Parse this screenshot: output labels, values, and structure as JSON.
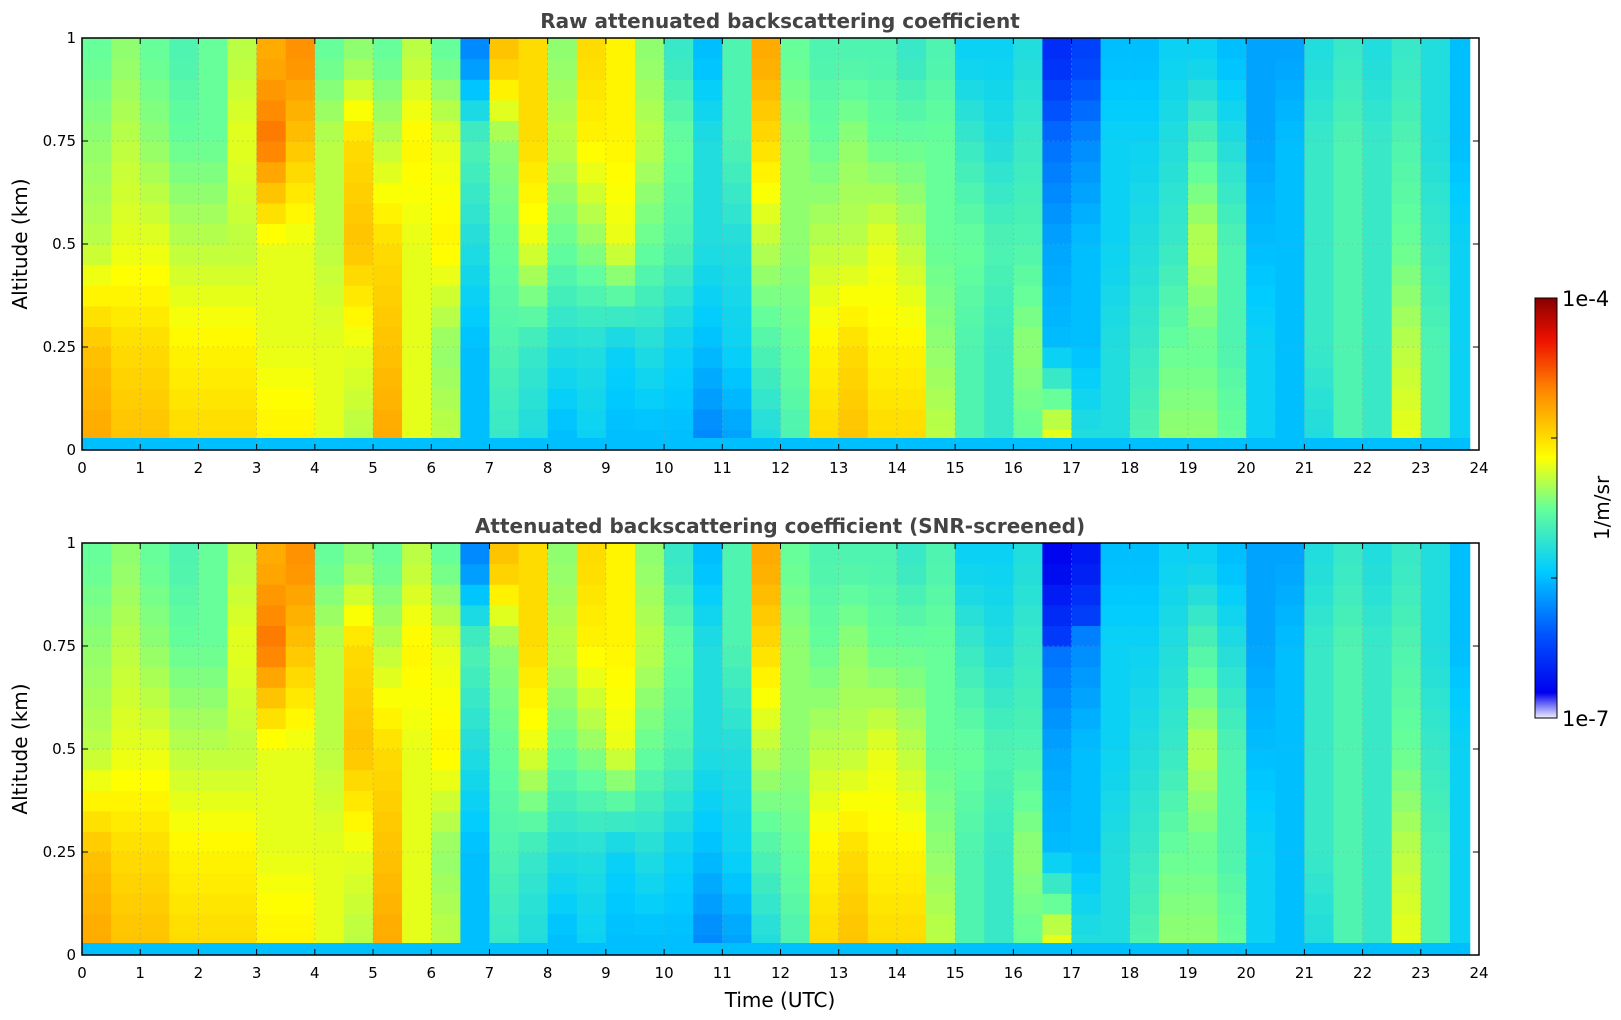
{
  "figure": {
    "xlabel": "Time (UTC)",
    "colorbar_label": "1/m/sr",
    "colorbar_ticks": [
      "1e-4",
      "1e-7"
    ],
    "colormap": "jet"
  },
  "chart_data": [
    {
      "type": "heatmap",
      "title": "Raw attenuated backscattering coefficient",
      "xlabel": "",
      "ylabel": "Altitude (km)",
      "xlim": [
        0,
        24
      ],
      "ylim": [
        0,
        1
      ],
      "x_ticks": [
        "0",
        "1",
        "2",
        "3",
        "4",
        "5",
        "6",
        "7",
        "8",
        "9",
        "10",
        "11",
        "12",
        "13",
        "14",
        "15",
        "16",
        "17",
        "18",
        "19",
        "20",
        "21",
        "22",
        "23",
        "24"
      ],
      "y_ticks": [
        "0",
        "0.25",
        "0.5",
        "0.75",
        "1"
      ],
      "grid": true,
      "colorbar": {
        "range": [
          "1e-7",
          "1e-4"
        ],
        "label": "1/m/sr",
        "scale": "log"
      },
      "time_profiles": {
        "time": [
          0,
          0.5,
          1,
          1.5,
          2,
          2.5,
          3,
          3.5,
          4,
          4.5,
          5,
          5.5,
          6,
          6.5,
          7,
          7.5,
          8,
          8.5,
          9,
          9.5,
          10,
          10.5,
          11,
          11.5,
          12,
          12.5,
          13,
          13.5,
          14,
          14.5,
          15,
          15.5,
          16,
          16.5,
          17,
          17.5,
          18,
          18.5,
          19,
          19.5,
          20,
          20.5,
          21,
          21.5,
          22,
          22.5,
          23,
          23.5
        ],
        "altitude": [
          0.05,
          0.25,
          0.5,
          0.75,
          0.95
        ],
        "log10_beta": [
          [
            -4.8,
            -4.9,
            -5.3,
            -5.4,
            -5.5
          ],
          [
            -4.9,
            -5.0,
            -5.2,
            -5.3,
            -5.4
          ],
          [
            -4.9,
            -5.0,
            -5.2,
            -5.4,
            -5.5
          ],
          [
            -5.0,
            -5.1,
            -5.3,
            -5.5,
            -5.6
          ],
          [
            -5.0,
            -5.1,
            -5.3,
            -5.5,
            -5.5
          ],
          [
            -5.0,
            -5.1,
            -5.3,
            -5.2,
            -5.3
          ],
          [
            -5.1,
            -5.2,
            -5.2,
            -4.6,
            -4.8
          ],
          [
            -5.1,
            -5.2,
            -5.2,
            -4.9,
            -4.7
          ],
          [
            -5.2,
            -5.2,
            -5.3,
            -5.3,
            -5.5
          ],
          [
            -5.3,
            -5.2,
            -4.9,
            -5.0,
            -5.4
          ],
          [
            -4.8,
            -4.9,
            -5.0,
            -5.3,
            -5.5
          ],
          [
            -5.2,
            -5.2,
            -5.2,
            -5.1,
            -5.3
          ],
          [
            -5.3,
            -5.4,
            -5.1,
            -5.2,
            -5.5
          ],
          [
            -6.0,
            -6.0,
            -5.8,
            -5.6,
            -6.2
          ],
          [
            -5.7,
            -5.6,
            -5.5,
            -5.4,
            -4.9
          ],
          [
            -5.8,
            -5.7,
            -5.2,
            -5.0,
            -5.0
          ],
          [
            -6.0,
            -5.8,
            -5.5,
            -5.3,
            -5.4
          ],
          [
            -5.9,
            -5.8,
            -5.4,
            -5.1,
            -5.0
          ],
          [
            -6.0,
            -5.9,
            -5.2,
            -5.1,
            -5.1
          ],
          [
            -6.0,
            -5.8,
            -5.5,
            -5.3,
            -5.4
          ],
          [
            -6.0,
            -5.9,
            -5.6,
            -5.5,
            -5.7
          ],
          [
            -6.2,
            -6.0,
            -5.8,
            -5.8,
            -6.0
          ],
          [
            -6.1,
            -5.9,
            -5.8,
            -5.6,
            -5.6
          ],
          [
            -5.8,
            -5.6,
            -5.3,
            -5.0,
            -4.8
          ],
          [
            -5.6,
            -5.5,
            -5.4,
            -5.4,
            -5.5
          ],
          [
            -5.0,
            -5.1,
            -5.3,
            -5.5,
            -5.6
          ],
          [
            -4.9,
            -5.0,
            -5.3,
            -5.4,
            -5.6
          ],
          [
            -5.0,
            -5.1,
            -5.2,
            -5.5,
            -5.6
          ],
          [
            -5.0,
            -5.1,
            -5.3,
            -5.5,
            -5.7
          ],
          [
            -5.3,
            -5.4,
            -5.5,
            -5.5,
            -5.6
          ],
          [
            -5.6,
            -5.6,
            -5.5,
            -5.7,
            -5.9
          ],
          [
            -5.7,
            -5.7,
            -5.6,
            -5.8,
            -5.9
          ],
          [
            -5.5,
            -5.4,
            -5.6,
            -5.7,
            -5.8
          ],
          [
            -5.2,
            -6.0,
            -6.1,
            -6.3,
            -6.6
          ],
          [
            -5.8,
            -6.0,
            -6.0,
            -6.2,
            -6.5
          ],
          [
            -5.8,
            -5.8,
            -5.9,
            -5.9,
            -6.0
          ],
          [
            -5.6,
            -5.7,
            -5.8,
            -5.9,
            -6.0
          ],
          [
            -5.4,
            -5.5,
            -5.7,
            -5.8,
            -5.9
          ],
          [
            -5.4,
            -5.5,
            -5.3,
            -5.6,
            -5.9
          ],
          [
            -5.5,
            -5.6,
            -5.6,
            -5.8,
            -6.0
          ],
          [
            -5.9,
            -5.9,
            -6.0,
            -6.1,
            -6.1
          ],
          [
            -6.0,
            -6.0,
            -6.0,
            -6.0,
            -6.1
          ],
          [
            -5.8,
            -5.7,
            -5.7,
            -5.7,
            -5.8
          ],
          [
            -5.6,
            -5.6,
            -5.6,
            -5.6,
            -5.7
          ],
          [
            -5.7,
            -5.7,
            -5.7,
            -5.7,
            -5.8
          ],
          [
            -5.2,
            -5.3,
            -5.5,
            -5.6,
            -5.7
          ],
          [
            -5.6,
            -5.6,
            -5.7,
            -5.8,
            -5.8
          ],
          [
            -5.9,
            -5.9,
            -5.9,
            -6.0,
            -6.0
          ]
        ]
      }
    },
    {
      "type": "heatmap",
      "title": "Attenuated backscattering coefficient (SNR-screened)",
      "xlabel": "Time (UTC)",
      "ylabel": "Altitude (km)",
      "xlim": [
        0,
        24
      ],
      "ylim": [
        0,
        1
      ],
      "x_ticks": [
        "0",
        "1",
        "2",
        "3",
        "4",
        "5",
        "6",
        "7",
        "8",
        "9",
        "10",
        "11",
        "12",
        "13",
        "14",
        "15",
        "16",
        "17",
        "18",
        "19",
        "20",
        "21",
        "22",
        "23",
        "24"
      ],
      "y_ticks": [
        "0",
        "0.25",
        "0.5",
        "0.75",
        "1"
      ],
      "grid": true,
      "colorbar": {
        "range": [
          "1e-7",
          "1e-4"
        ],
        "label": "1/m/sr",
        "scale": "log"
      },
      "same_profiles_as_panel": 1
    }
  ]
}
